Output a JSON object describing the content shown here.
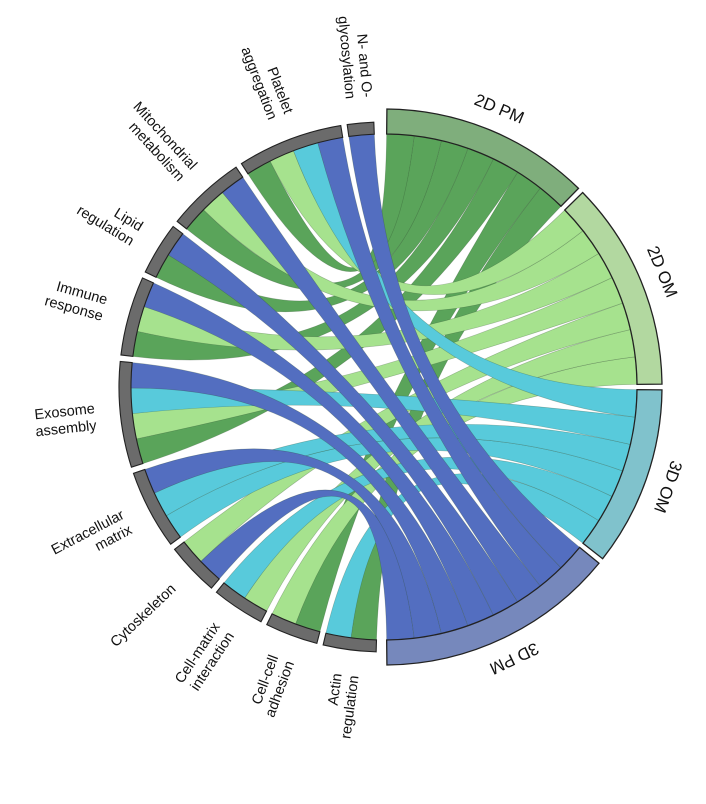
{
  "colors": {
    "2D PM": "#5aa45a",
    "2D OM": "#a6e28e",
    "3D OM": "#58cadb",
    "3D PM": "#536ec0",
    "category_segment": "#6b6b6b",
    "segment_outline": "#222222"
  },
  "outer_colors": {
    "2D PM": "#7fae7c",
    "2D OM": "#b2d8a0",
    "3D OM": "#80c2cc",
    "3D PM": "#7688bc"
  },
  "groups": [
    {
      "id": "2D PM",
      "label": "2D PM"
    },
    {
      "id": "2D OM",
      "label": "2D OM"
    },
    {
      "id": "3D OM",
      "label": "3D OM"
    },
    {
      "id": "3D PM",
      "label": "3D PM"
    }
  ],
  "categories": [
    {
      "id": "actin",
      "lines": [
        "Actin",
        "regulation"
      ]
    },
    {
      "id": "cellcell",
      "lines": [
        "Cell-cell",
        "adhesion"
      ]
    },
    {
      "id": "cellmatrix",
      "lines": [
        "Cell-matrix",
        "interaction"
      ]
    },
    {
      "id": "cyto",
      "lines": [
        "Cytoskeleton"
      ]
    },
    {
      "id": "ecm",
      "lines": [
        "Extracellular",
        "matrix"
      ]
    },
    {
      "id": "exo",
      "lines": [
        "Exosome",
        "assembly"
      ]
    },
    {
      "id": "immune",
      "lines": [
        "Immune",
        "response"
      ]
    },
    {
      "id": "lipid",
      "lines": [
        "Lipid",
        "regulation"
      ]
    },
    {
      "id": "mito",
      "lines": [
        "Mitochondrial",
        "metabolism"
      ]
    },
    {
      "id": "platelet",
      "lines": [
        "Platelet",
        "aggregation"
      ]
    },
    {
      "id": "glyco",
      "lines": [
        "N- and O-",
        "glycosylation"
      ]
    }
  ],
  "links": [
    {
      "cat": "actin",
      "group": "2D PM",
      "value": 1
    },
    {
      "cat": "actin",
      "group": "3D OM",
      "value": 1
    },
    {
      "cat": "cellcell",
      "group": "2D PM",
      "value": 1
    },
    {
      "cat": "cellcell",
      "group": "2D OM",
      "value": 1
    },
    {
      "cat": "cellmatrix",
      "group": "2D OM",
      "value": 1
    },
    {
      "cat": "cellmatrix",
      "group": "3D OM",
      "value": 1
    },
    {
      "cat": "cyto",
      "group": "3D PM",
      "value": 1
    },
    {
      "cat": "cyto",
      "group": "2D OM",
      "value": 1
    },
    {
      "cat": "ecm",
      "group": "3D OM",
      "value": 1
    },
    {
      "cat": "ecm",
      "group": "3D OM",
      "value": 1
    },
    {
      "cat": "ecm",
      "group": "3D PM",
      "value": 1
    },
    {
      "cat": "exo",
      "group": "2D PM",
      "value": 1
    },
    {
      "cat": "exo",
      "group": "2D OM",
      "value": 1
    },
    {
      "cat": "exo",
      "group": "3D OM",
      "value": 1
    },
    {
      "cat": "exo",
      "group": "3D PM",
      "value": 1
    },
    {
      "cat": "immune",
      "group": "2D PM",
      "value": 1
    },
    {
      "cat": "immune",
      "group": "2D OM",
      "value": 1
    },
    {
      "cat": "immune",
      "group": "3D PM",
      "value": 1
    },
    {
      "cat": "lipid",
      "group": "2D PM",
      "value": 1
    },
    {
      "cat": "lipid",
      "group": "3D PM",
      "value": 1
    },
    {
      "cat": "mito",
      "group": "2D PM",
      "value": 1
    },
    {
      "cat": "mito",
      "group": "2D OM",
      "value": 1
    },
    {
      "cat": "mito",
      "group": "3D PM",
      "value": 1
    },
    {
      "cat": "platelet",
      "group": "2D PM",
      "value": 1
    },
    {
      "cat": "platelet",
      "group": "2D OM",
      "value": 1
    },
    {
      "cat": "platelet",
      "group": "3D OM",
      "value": 1
    },
    {
      "cat": "platelet",
      "group": "3D PM",
      "value": 1
    },
    {
      "cat": "glyco",
      "group": "3D PM",
      "value": 1
    }
  ]
}
